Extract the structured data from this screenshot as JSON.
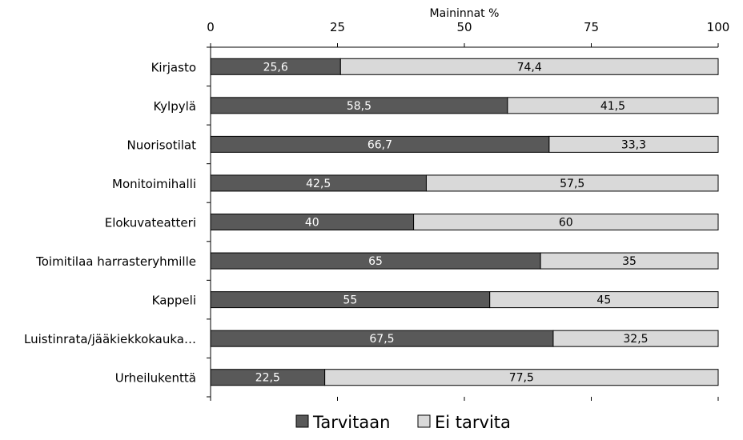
{
  "chart_data": {
    "type": "bar",
    "orientation": "horizontal",
    "stacked": true,
    "xlabel": "Maininnat %",
    "xlim": [
      0,
      100
    ],
    "xticks": [
      0,
      25,
      50,
      75,
      100
    ],
    "xaxis_position": "top",
    "grid": false,
    "legend_position": "bottom",
    "categories": [
      "Kirjasto",
      "Kylpylä",
      "Nuorisotilat",
      "Monitoimihalli",
      "Elokuvateatteri",
      "Toimitilaa harrasteryhmille",
      "Kappeli",
      "Luistinrata/jääkiekkokauka…",
      "Urheilukenttä"
    ],
    "series": [
      {
        "name": "Tarvitaan",
        "color": "#595959",
        "values": [
          25.6,
          58.5,
          66.7,
          42.5,
          40,
          65,
          55,
          67.5,
          22.5
        ],
        "labels": [
          "25,6",
          "58,5",
          "66,7",
          "42,5",
          "40",
          "65",
          "55",
          "67,5",
          "22,5"
        ]
      },
      {
        "name": "Ei tarvita",
        "color": "#d9d9d9",
        "values": [
          74.4,
          41.5,
          33.3,
          57.5,
          60,
          35,
          45,
          32.5,
          77.5
        ],
        "labels": [
          "74,4",
          "41,5",
          "33,3",
          "57,5",
          "60",
          "35",
          "45",
          "32,5",
          "77,5"
        ]
      }
    ]
  }
}
